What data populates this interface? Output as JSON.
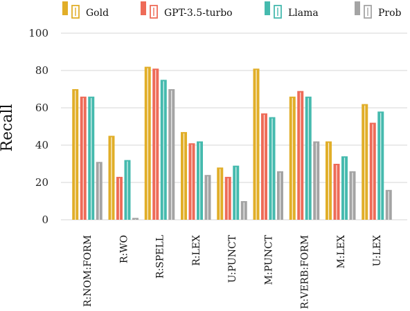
{
  "chart_data": {
    "type": "bar",
    "ylabel": "Recall",
    "xlabel": "",
    "ylim": [
      0,
      100
    ],
    "yticks": [
      0,
      20,
      40,
      60,
      80,
      100
    ],
    "grid": true,
    "legend_position": "top",
    "categories": [
      "R:NOM:FORM",
      "R:WO",
      "R:SPELL",
      "R:LEX",
      "U:PUNCT",
      "M:PUNCT",
      "R:VERB:FORM",
      "M:LEX",
      "U:LEX"
    ],
    "series": [
      {
        "name": "Gold",
        "color": "#E1AE28",
        "values": [
          70,
          45,
          82,
          47,
          28,
          81,
          66,
          42,
          62
        ]
      },
      {
        "name": "GPT-3.5-turbo",
        "color": "#EE6B58",
        "values": [
          66,
          23,
          81,
          41,
          23,
          57,
          69,
          30,
          52
        ]
      },
      {
        "name": "Llama",
        "color": "#45BAAE",
        "values": [
          66,
          32,
          75,
          42,
          29,
          55,
          66,
          34,
          58
        ]
      },
      {
        "name": "Prob",
        "color": "#A4A4A4",
        "values": [
          31,
          1,
          70,
          24,
          10,
          26,
          42,
          26,
          16
        ]
      }
    ]
  }
}
